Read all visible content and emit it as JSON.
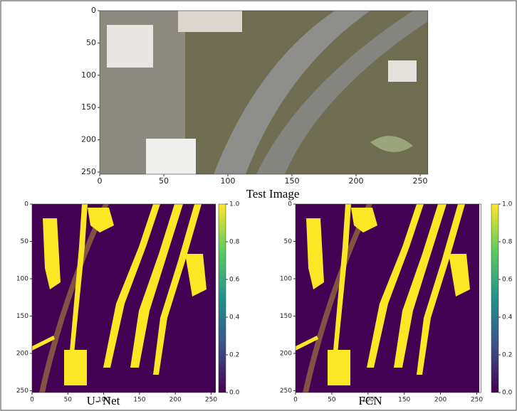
{
  "panels": [
    {
      "caption": "Test Image",
      "xticks": [
        0,
        50,
        100,
        150,
        200,
        250
      ],
      "yticks": [
        0,
        50,
        100,
        150,
        200,
        250
      ]
    },
    {
      "caption": "U- Net",
      "xticks": [
        0,
        50,
        100,
        150,
        200,
        250
      ],
      "yticks": [
        0,
        50,
        100,
        150,
        200,
        250
      ],
      "colorbar_ticks": [
        "0.0",
        "0.2",
        "0.4",
        "0.6",
        "0.8",
        "1.0"
      ]
    },
    {
      "caption": "FCN",
      "xticks": [
        0,
        50,
        100,
        150,
        200,
        250
      ],
      "yticks": [
        0,
        50,
        100,
        150,
        200,
        250
      ],
      "colorbar_ticks": [
        "0.0",
        "0.2",
        "0.4",
        "0.6",
        "0.8",
        "1.0"
      ]
    }
  ]
}
